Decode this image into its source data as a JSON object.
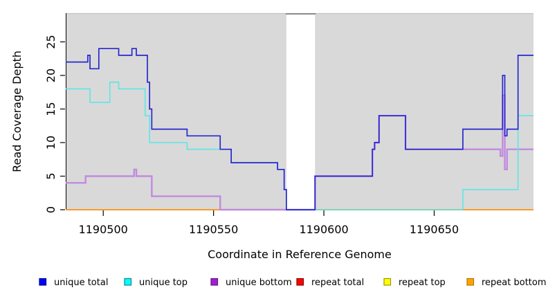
{
  "chart_data": {
    "type": "line",
    "style": "step",
    "title": "",
    "xlabel": "Coordinate in Reference Genome",
    "ylabel": "Read Coverage Depth",
    "xlim": [
      1190483,
      1190695
    ],
    "ylim": [
      0,
      29
    ],
    "x_ticks": [
      1190500,
      1190550,
      1190600,
      1190650
    ],
    "y_ticks": [
      0,
      5,
      10,
      15,
      20,
      25
    ],
    "grid": false,
    "legend_position": "bottom",
    "plot_background": "#d9d9d9",
    "gap_region": {
      "start": 1190583,
      "end": 1190596,
      "fill": "#ffffff",
      "top_line_color": "#8a8a8a"
    },
    "series": [
      {
        "name": "unique total",
        "line_color": "#2727cf",
        "legend_fill": "#0000ff",
        "legend_border": "#00008b",
        "points": [
          [
            1190483,
            22
          ],
          [
            1190493,
            23
          ],
          [
            1190494,
            21
          ],
          [
            1190498,
            24
          ],
          [
            1190507,
            23
          ],
          [
            1190513,
            24
          ],
          [
            1190515,
            23
          ],
          [
            1190520,
            19
          ],
          [
            1190521,
            15
          ],
          [
            1190522,
            12
          ],
          [
            1190538,
            11
          ],
          [
            1190553,
            9
          ],
          [
            1190558,
            7
          ],
          [
            1190579,
            6
          ],
          [
            1190582,
            3
          ],
          [
            1190583,
            0
          ],
          [
            1190596,
            5
          ],
          [
            1190622,
            9
          ],
          [
            1190623,
            10
          ],
          [
            1190625,
            14
          ],
          [
            1190637,
            9
          ],
          [
            1190663,
            12
          ],
          [
            1190681,
            20
          ],
          [
            1190682,
            11
          ],
          [
            1190683,
            12
          ],
          [
            1190688,
            23
          ]
        ]
      },
      {
        "name": "unique top",
        "line_color": "#5ce6e6",
        "legend_fill": "#00ffff",
        "legend_border": "#008b8b",
        "points": [
          [
            1190483,
            18
          ],
          [
            1190494,
            16
          ],
          [
            1190503,
            19
          ],
          [
            1190507,
            18
          ],
          [
            1190519,
            14
          ],
          [
            1190521,
            10
          ],
          [
            1190538,
            9
          ],
          [
            1190558,
            7
          ],
          [
            1190579,
            6
          ],
          [
            1190582,
            3
          ],
          [
            1190583,
            0
          ],
          [
            1190663,
            3
          ],
          [
            1190688,
            14
          ]
        ]
      },
      {
        "name": "unique bottom",
        "line_color": "#c18ae0",
        "legend_fill": "#a020d0",
        "legend_border": "#6a0f8e",
        "points": [
          [
            1190483,
            4
          ],
          [
            1190492,
            5
          ],
          [
            1190514,
            6
          ],
          [
            1190515,
            5
          ],
          [
            1190522,
            2
          ],
          [
            1190553,
            0
          ],
          [
            1190596,
            5
          ],
          [
            1190622,
            9
          ],
          [
            1190623,
            10
          ],
          [
            1190625,
            14
          ],
          [
            1190637,
            9
          ],
          [
            1190680,
            8
          ],
          [
            1190681,
            17
          ],
          [
            1190682,
            6
          ],
          [
            1190683,
            9
          ]
        ]
      },
      {
        "name": "repeat total",
        "line_color": "#d02020",
        "legend_fill": "#ff0000",
        "legend_border": "#8b0000",
        "points": [
          [
            1190483,
            0
          ]
        ]
      },
      {
        "name": "repeat top",
        "line_color": "#f0ea30",
        "legend_fill": "#ffff00",
        "legend_border": "#9a9a00",
        "points": [
          [
            1190483,
            0
          ]
        ]
      },
      {
        "name": "repeat bottom",
        "line_color": "#ff9b25",
        "legend_fill": "#ffa500",
        "legend_border": "#b87400",
        "points": [
          [
            1190483,
            0
          ]
        ]
      }
    ]
  }
}
